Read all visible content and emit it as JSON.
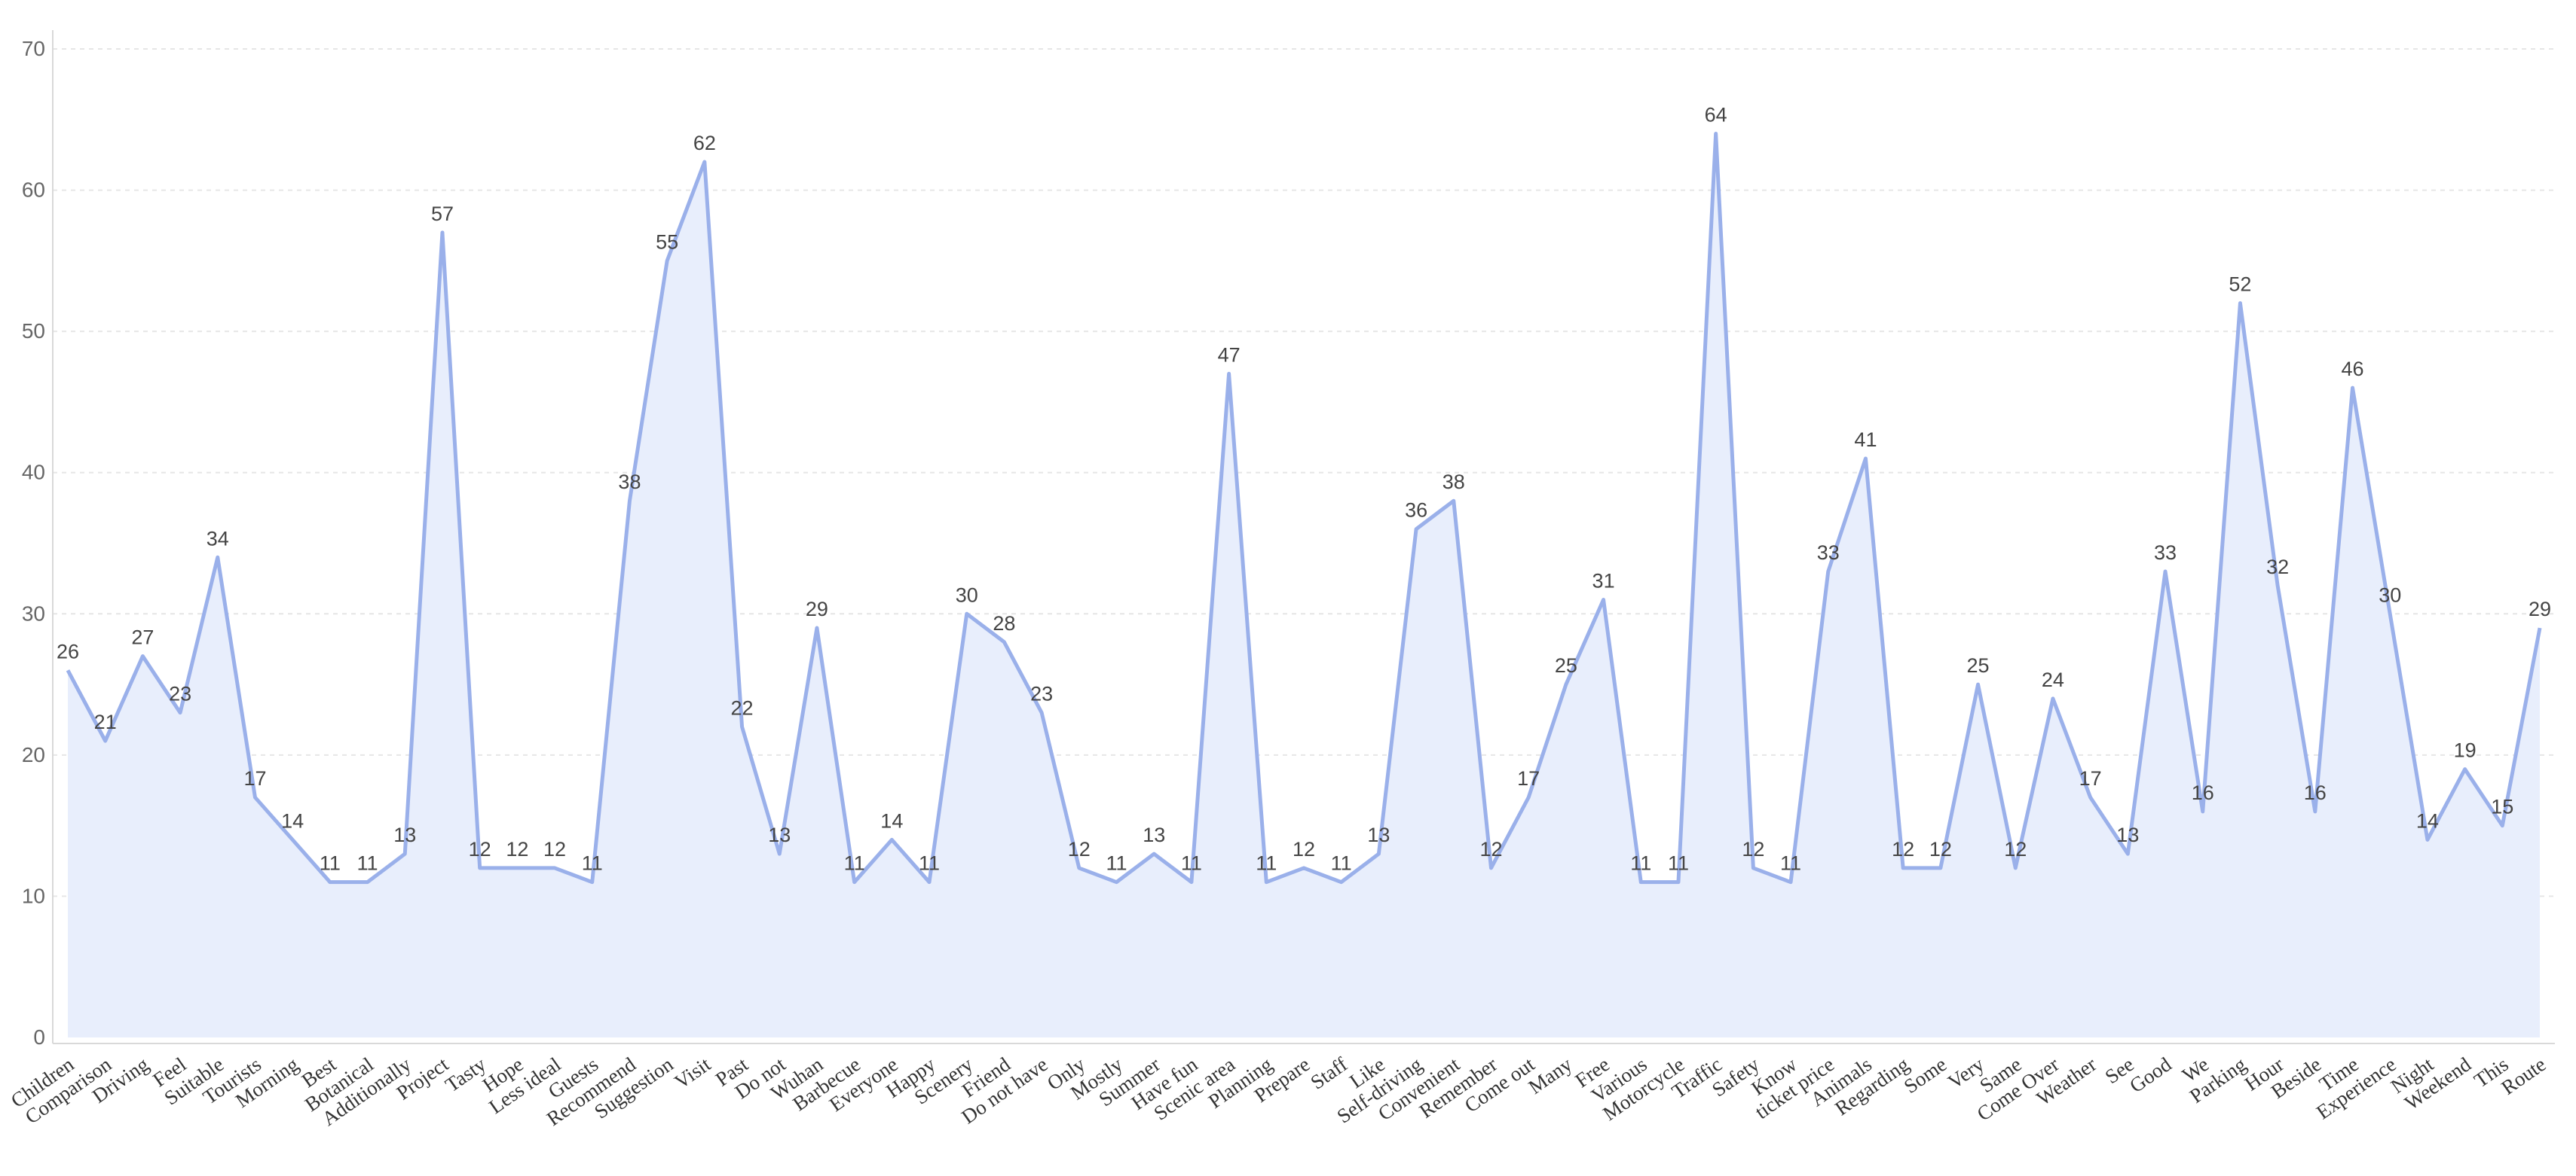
{
  "chart_data": {
    "type": "area",
    "title": "",
    "xlabel": "",
    "ylabel": "",
    "ylim": [
      0,
      70
    ],
    "yticks": [
      0,
      10,
      20,
      30,
      40,
      50,
      60,
      70
    ],
    "grid": true,
    "legend": "none",
    "colors": {
      "line": "#9ab0ea",
      "fill": "#e8eefc",
      "grid": "#e6e6e6",
      "axis": "#d9d9d9"
    },
    "categories": [
      "Children",
      "Comparison",
      "Driving",
      "Feel",
      "Suitable",
      "Tourists",
      "Morning",
      "Best",
      "Botanical",
      "Additionally",
      "Project",
      "Tasty",
      "Hope",
      "Less ideal",
      "Guests",
      "Recommend",
      "Suggestion",
      "Visit",
      "Past",
      "Do not",
      "Wuhan",
      "Barbecue",
      "Everyone",
      "Happy",
      "Scenery",
      "Friend",
      "Do not have",
      "Only",
      "Mostly",
      "Summer",
      "Have fun",
      "Scenic area",
      "Planning",
      "Prepare",
      "Staff",
      "Like",
      "Self-driving",
      "Convenient",
      "Remember",
      "Come out",
      "Many",
      "Free",
      "Various",
      "Motorcycle",
      "Traffic",
      "Safety",
      "Know",
      "ticket price",
      "Animals",
      "Regarding",
      "Some",
      "Very",
      "Same",
      "Come Over",
      "Weather",
      "See",
      "Good",
      "We",
      "Parking",
      "Hour",
      "Beside",
      "Time",
      "Experience",
      "Night",
      "Weekend",
      "This",
      "Route"
    ],
    "values": [
      26,
      21,
      27,
      23,
      34,
      17,
      14,
      11,
      11,
      13,
      57,
      12,
      12,
      12,
      11,
      38,
      55,
      62,
      22,
      13,
      29,
      11,
      14,
      11,
      30,
      28,
      23,
      12,
      11,
      13,
      11,
      47,
      11,
      12,
      11,
      13,
      36,
      38,
      12,
      17,
      25,
      31,
      11,
      11,
      64,
      12,
      11,
      33,
      41,
      12,
      12,
      25,
      12,
      24,
      17,
      13,
      33,
      16,
      52,
      32,
      16,
      46,
      30,
      14,
      19,
      15,
      29
    ]
  }
}
